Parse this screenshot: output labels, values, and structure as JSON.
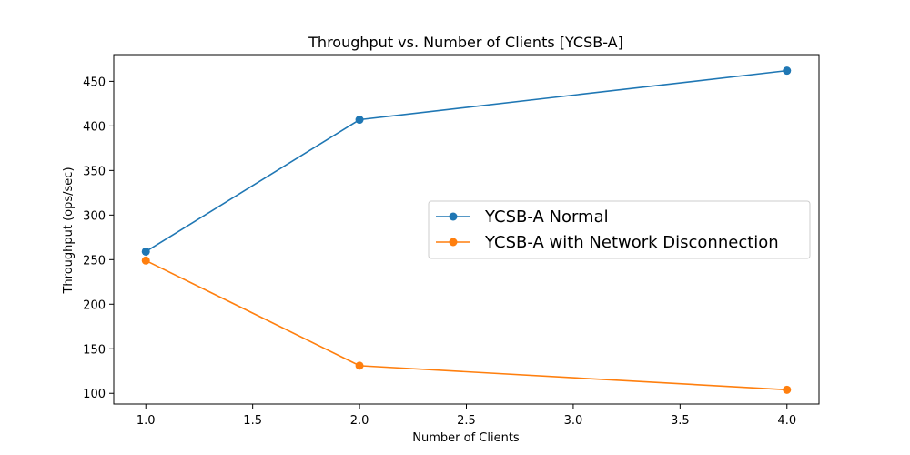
{
  "chart_data": {
    "type": "line",
    "title": "Throughput vs. Number of Clients [YCSB-A]",
    "xlabel": "Number of Clients",
    "ylabel": "Throughput (ops/sec)",
    "xlim": [
      0.85,
      4.15
    ],
    "ylim": [
      88,
      480
    ],
    "xticks": [
      1.0,
      1.5,
      2.0,
      2.5,
      3.0,
      3.5,
      4.0
    ],
    "xtick_labels": [
      "1.0",
      "1.5",
      "2.0",
      "2.5",
      "3.0",
      "3.5",
      "4.0"
    ],
    "yticks": [
      100,
      150,
      200,
      250,
      300,
      350,
      400,
      450
    ],
    "ytick_labels": [
      "100",
      "150",
      "200",
      "250",
      "300",
      "350",
      "400",
      "450"
    ],
    "grid": false,
    "legend_position": "center-right",
    "x": [
      1,
      2,
      4
    ],
    "series": [
      {
        "name": "YCSB-A Normal",
        "values": [
          259,
          407,
          462
        ],
        "color": "#1f77b4",
        "marker": "circle"
      },
      {
        "name": "YCSB-A with Network Disconnection",
        "values": [
          249,
          131,
          104
        ],
        "color": "#ff7f0e",
        "marker": "circle"
      }
    ]
  }
}
